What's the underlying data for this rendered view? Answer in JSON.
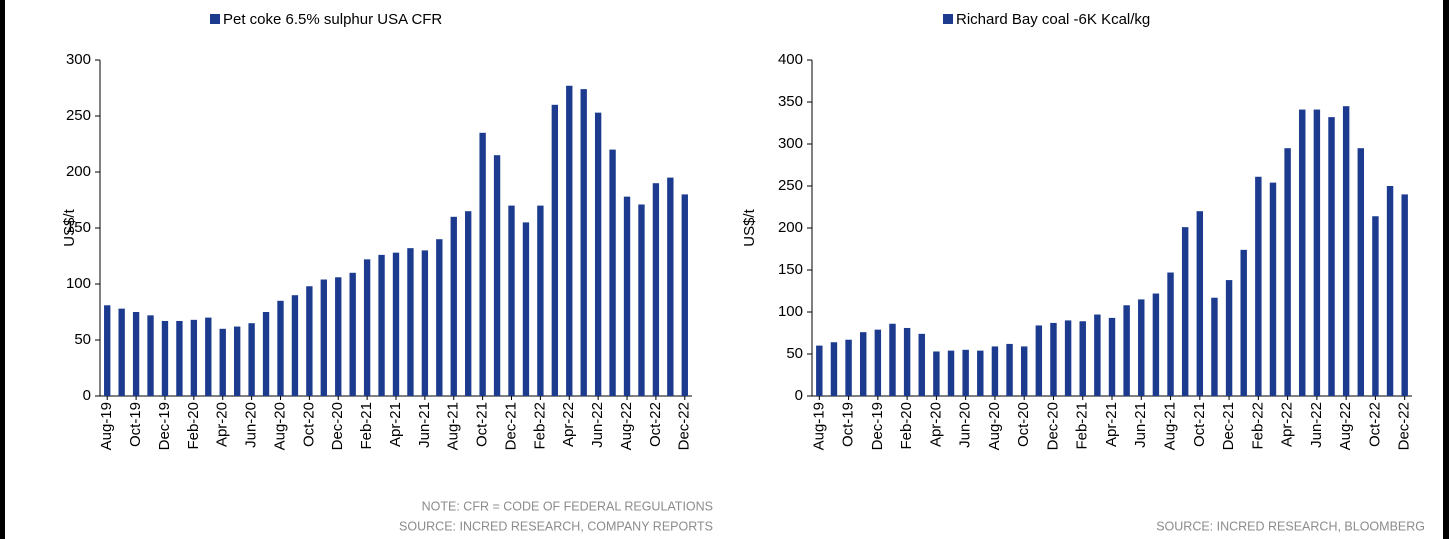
{
  "chart_data": [
    {
      "type": "bar",
      "legend": "Pet coke 6.5% sulphur USA CFR",
      "ylabel": "US$/t",
      "color": "#1c3b8f",
      "categories": [
        "Aug-19",
        null,
        "Oct-19",
        null,
        "Dec-19",
        null,
        "Feb-20",
        null,
        "Apr-20",
        null,
        "Jun-20",
        null,
        "Aug-20",
        null,
        "Oct-20",
        null,
        "Dec-20",
        null,
        "Feb-21",
        null,
        "Apr-21",
        null,
        "Jun-21",
        null,
        "Aug-21",
        null,
        "Oct-21",
        null,
        "Dec-21",
        null,
        "Feb-22",
        null,
        "Apr-22",
        null,
        "Jun-22",
        null,
        "Aug-22",
        null,
        "Oct-22",
        null,
        "Dec-22"
      ],
      "values": [
        81,
        78,
        75,
        72,
        67,
        67,
        68,
        70,
        60,
        62,
        65,
        75,
        85,
        90,
        98,
        104,
        106,
        110,
        122,
        126,
        128,
        132,
        130,
        140,
        160,
        165,
        235,
        215,
        170,
        155,
        170,
        260,
        277,
        274,
        253,
        220,
        178,
        171,
        190,
        195,
        180
      ],
      "ylim": [
        0,
        300
      ],
      "yticks": [
        0,
        50,
        100,
        150,
        200,
        250,
        300
      ],
      "notes": [
        "NOTE: CFR = CODE OF FEDERAL REGULATIONS",
        "SOURCE: INCRED RESEARCH, COMPANY REPORTS"
      ]
    },
    {
      "type": "bar",
      "legend": "Richard Bay coal -6K Kcal/kg",
      "ylabel": "US$/t",
      "color": "#1c3b8f",
      "categories": [
        "Aug-19",
        null,
        "Oct-19",
        null,
        "Dec-19",
        null,
        "Feb-20",
        null,
        "Apr-20",
        null,
        "Jun-20",
        null,
        "Aug-20",
        null,
        "Oct-20",
        null,
        "Dec-20",
        null,
        "Feb-21",
        null,
        "Apr-21",
        null,
        "Jun-21",
        null,
        "Aug-21",
        null,
        "Oct-21",
        null,
        "Dec-21",
        null,
        "Feb-22",
        null,
        "Apr-22",
        null,
        "Jun-22",
        null,
        "Aug-22",
        null,
        "Oct-22",
        null,
        "Dec-22"
      ],
      "values": [
        60,
        64,
        67,
        76,
        79,
        86,
        81,
        74,
        53,
        54,
        55,
        54,
        59,
        62,
        59,
        84,
        87,
        90,
        89,
        97,
        93,
        108,
        115,
        122,
        147,
        201,
        220,
        117,
        138,
        174,
        261,
        254,
        295,
        341,
        341,
        332,
        345,
        295,
        214,
        250,
        240
      ],
      "ylim": [
        0,
        400
      ],
      "yticks": [
        0,
        50,
        100,
        150,
        200,
        250,
        300,
        350,
        400
      ],
      "notes": [
        "SOURCE: INCRED RESEARCH, BLOOMBERG"
      ]
    }
  ]
}
